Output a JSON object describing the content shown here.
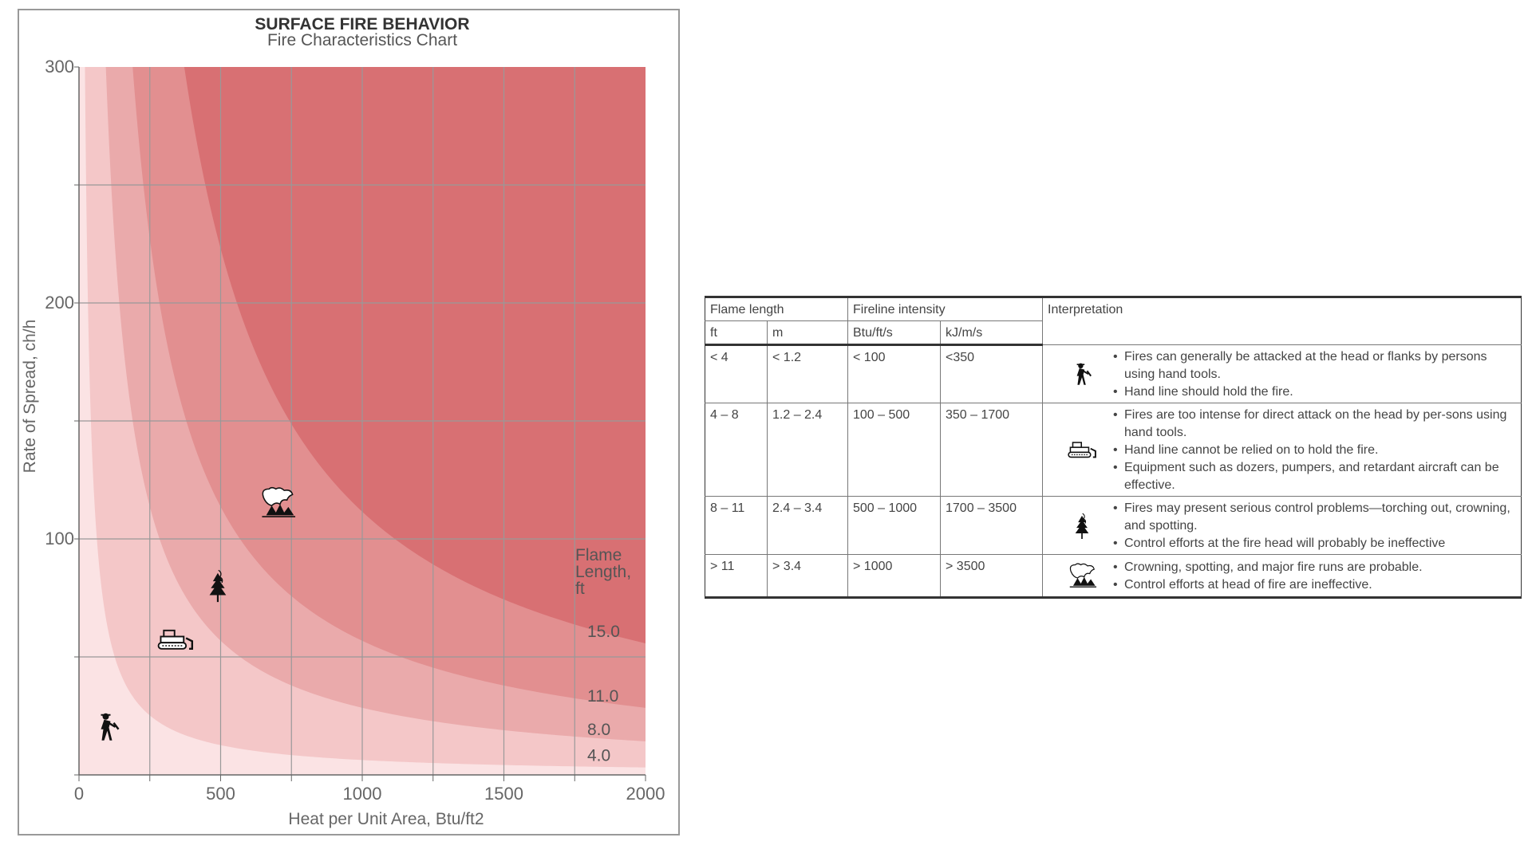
{
  "chart_data": {
    "type": "area",
    "title": "SURFACE FIRE BEHAVIOR",
    "subtitle": "Fire Characteristics Chart",
    "xlabel": "Heat per Unit Area, Btu/ft2",
    "ylabel": "Rate of Spread, ch/h",
    "xlim": [
      0,
      2000
    ],
    "ylim": [
      0,
      300
    ],
    "x_ticks": [
      "0",
      "500",
      "1000",
      "1500",
      "2000"
    ],
    "y_ticks": [
      "100",
      "200",
      "300"
    ],
    "grid": true,
    "legend_title": [
      "Flame",
      "Length,",
      "ft"
    ],
    "flame_length_curves": [
      {
        "label": "4.0",
        "flame_length_ft": 4.0
      },
      {
        "label": "8.0",
        "flame_length_ft": 8.0
      },
      {
        "label": "11.0",
        "flame_length_ft": 11.0
      },
      {
        "label": "15.0",
        "flame_length_ft": 15.0
      }
    ],
    "band_colors": [
      "#fbe3e4",
      "#f4c7c8",
      "#eaaaab",
      "#e28f90",
      "#d87073"
    ],
    "markers": [
      {
        "icon": "hand-crew-icon",
        "x": 100,
        "y": 20
      },
      {
        "icon": "dozer-icon",
        "x": 340,
        "y": 57
      },
      {
        "icon": "torching-tree-icon",
        "x": 490,
        "y": 80
      },
      {
        "icon": "crown-fire-icon",
        "x": 700,
        "y": 115
      }
    ]
  },
  "table": {
    "header": {
      "flame_length": "Flame length",
      "fireline_intensity": "Fireline intensity",
      "interpretation": "Interpretation",
      "ft": "ft",
      "m": "m",
      "btu": "Btu/ft/s",
      "kj": "kJ/m/s"
    },
    "rows": [
      {
        "ft": "< 4",
        "m": "< 1.2",
        "btu": "< 100",
        "kj": "<350",
        "icon": "hand-crew-icon",
        "bullets": [
          "Fires can generally be attacked at the head or flanks by persons using hand tools.",
          "Hand line should hold the fire."
        ]
      },
      {
        "ft": "4 – 8",
        "m": "1.2 – 2.4",
        "btu": "100 – 500",
        "kj": "350 – 1700",
        "icon": "dozer-icon",
        "bullets": [
          "Fires are too intense for direct attack on the head by per-sons using hand tools.",
          "Hand line cannot be relied on to hold the fire.",
          "Equipment such as dozers, pumpers, and retardant aircraft can be effective."
        ]
      },
      {
        "ft": "8 – 11",
        "m": "2.4 – 3.4",
        "btu": "500 – 1000",
        "kj": "1700 – 3500",
        "icon": "torching-tree-icon",
        "bullets": [
          "Fires may present serious control problems—torching out, crowning, and spotting.",
          "Control efforts at the fire head will probably be ineffective"
        ]
      },
      {
        "ft": "> 11",
        "m": "> 3.4",
        "btu": "> 1000",
        "kj": "> 3500",
        "icon": "crown-fire-icon",
        "bullets": [
          "Crowning, spotting, and major fire runs are probable.",
          "Control efforts at head of fire are ineffective."
        ]
      }
    ]
  }
}
